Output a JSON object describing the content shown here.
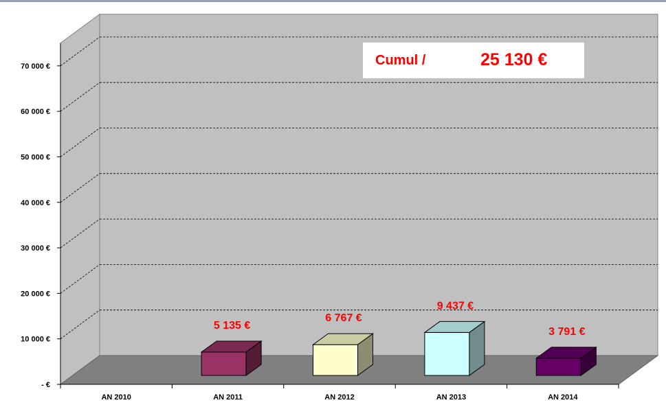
{
  "chart_data": {
    "type": "bar",
    "categories": [
      "AN 2010",
      "AN 2011",
      "AN 2012",
      "AN 2013",
      "AN 2014"
    ],
    "values": [
      0,
      5135,
      6767,
      9437,
      3791
    ],
    "data_labels": [
      "",
      "5 135 €",
      "6 767 €",
      "9 437 €",
      "3 791 €"
    ],
    "bar_colors": [
      "#993366",
      "#993366",
      "#ffffcc",
      "#ccffff",
      "#660066"
    ],
    "y_ticks": [
      {
        "value": 0,
        "label": "-   €"
      },
      {
        "value": 10000,
        "label": "10 000 €"
      },
      {
        "value": 20000,
        "label": "20 000 €"
      },
      {
        "value": 30000,
        "label": "30 000 €"
      },
      {
        "value": 40000,
        "label": "40 000 €"
      },
      {
        "value": 50000,
        "label": "50 000 €"
      },
      {
        "value": 60000,
        "label": "60 000 €"
      },
      {
        "value": 70000,
        "label": "70 000 €"
      }
    ],
    "ylim": [
      0,
      75000
    ],
    "grid": true,
    "grid_style": "dashed",
    "three_d": true,
    "title": "",
    "xlabel": "",
    "ylabel": "",
    "colors": {
      "wall": "#c0c0c0",
      "floor": "#808080",
      "label": "#ff0000"
    }
  },
  "annotation": {
    "label": "Cumul /",
    "value": "25 130 €"
  }
}
